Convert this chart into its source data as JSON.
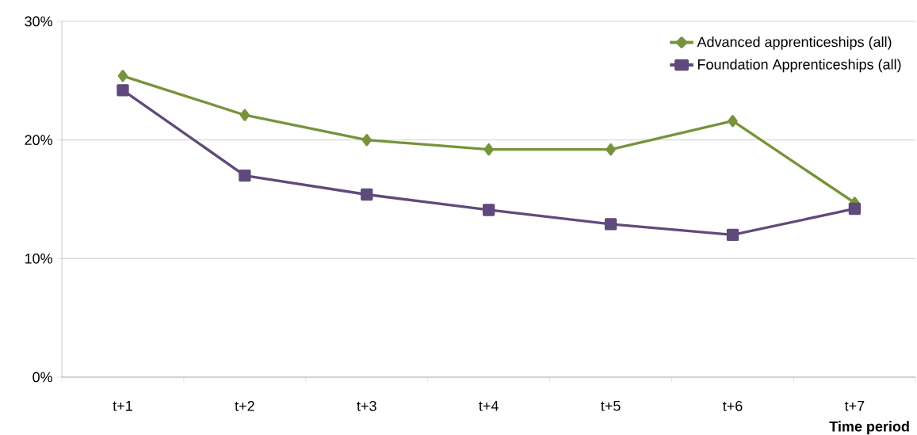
{
  "chart_data": {
    "type": "line",
    "xlabel": "**Time period**",
    "categories": [
      "t+1",
      "t+2",
      "t+3",
      "t+4",
      "t+5",
      "t+6",
      "t+7"
    ],
    "series": [
      {
        "name": "Advanced apprenticeships (all)",
        "color": "#77933c",
        "marker": "diamond",
        "values": [
          25.4,
          22.1,
          20.0,
          19.2,
          19.2,
          21.6,
          14.7
        ]
      },
      {
        "name": "Foundation Apprenticeships (all)",
        "color": "#604a7b",
        "marker": "square",
        "values": [
          24.2,
          17.0,
          15.4,
          14.1,
          12.9,
          12.0,
          14.2
        ]
      }
    ],
    "ylim": [
      0,
      30
    ],
    "yticks": [
      {
        "value": 0,
        "label": "0%"
      },
      {
        "value": 10,
        "label": "10%"
      },
      {
        "value": 20,
        "label": "20%"
      },
      {
        "value": 30,
        "label": "30%"
      }
    ],
    "grid": "y",
    "legend": "top right",
    "line_style": "solid"
  }
}
